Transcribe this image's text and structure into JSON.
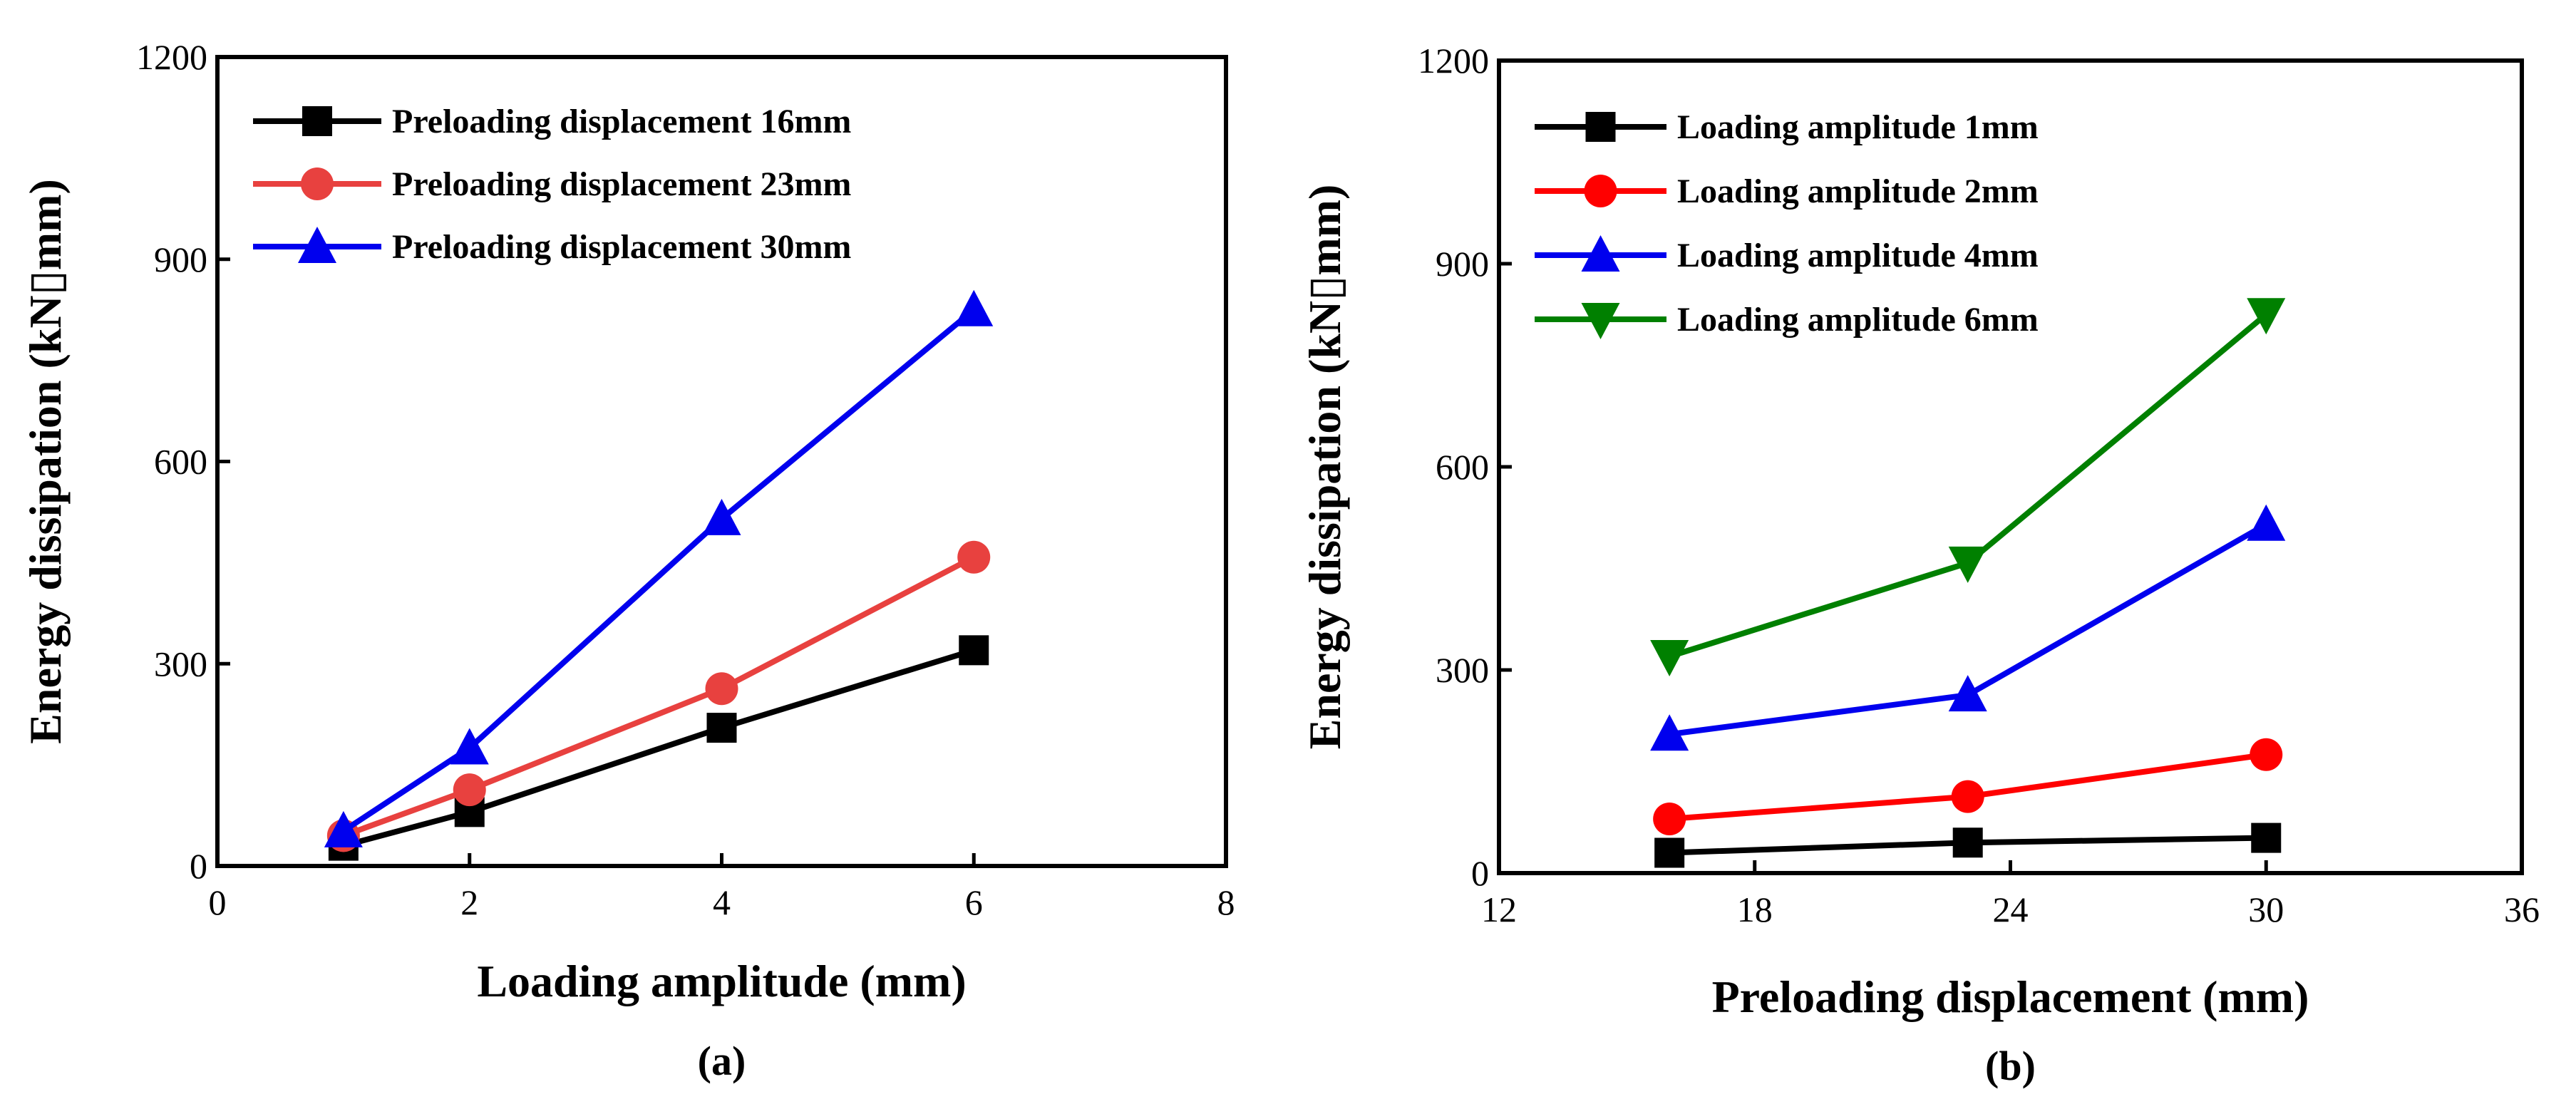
{
  "chart_data": [
    {
      "type": "line",
      "panel_label": "(a)",
      "xlabel": "Loading amplitude (mm)",
      "ylabel": "Energy dissipation (kN▯mm)",
      "xlim": [
        0,
        8
      ],
      "ylim": [
        0,
        1200
      ],
      "xticks": [
        0,
        2,
        4,
        6,
        8
      ],
      "yticks": [
        0,
        300,
        600,
        900,
        1200
      ],
      "legend_position": "top-left",
      "grid": false,
      "series": [
        {
          "name": "Preloading displacement 16mm",
          "color": "#000000",
          "marker": "square",
          "x": [
            1,
            2,
            4,
            6
          ],
          "y": [
            30,
            80,
            205,
            320
          ]
        },
        {
          "name": "Preloading displacement 23mm",
          "color": "#e8413f",
          "marker": "circle",
          "x": [
            1,
            2,
            4,
            6
          ],
          "y": [
            45,
            113,
            263,
            458
          ]
        },
        {
          "name": "Preloading displacement 30mm",
          "color": "#0000ee",
          "marker": "triangle-up",
          "x": [
            1,
            2,
            4,
            6
          ],
          "y": [
            52,
            175,
            515,
            825
          ]
        }
      ]
    },
    {
      "type": "line",
      "panel_label": "(b)",
      "xlabel": "Preloading displacement (mm)",
      "ylabel": "Energy dissipation (kN▯mm)",
      "xlim": [
        12,
        36
      ],
      "ylim": [
        0,
        1200
      ],
      "xticks": [
        12,
        18,
        24,
        30,
        36
      ],
      "yticks": [
        0,
        300,
        600,
        900,
        1200
      ],
      "legend_position": "top-left",
      "grid": false,
      "series": [
        {
          "name": "Loading amplitude 1mm",
          "color": "#000000",
          "marker": "square",
          "x": [
            16,
            23,
            30
          ],
          "y": [
            30,
            45,
            52
          ]
        },
        {
          "name": "Loading amplitude 2mm",
          "color": "#ff0000",
          "marker": "circle",
          "x": [
            16,
            23,
            30
          ],
          "y": [
            80,
            113,
            175
          ]
        },
        {
          "name": "Loading amplitude 4mm",
          "color": "#0000ee",
          "marker": "triangle-up",
          "x": [
            16,
            23,
            30
          ],
          "y": [
            205,
            263,
            515
          ]
        },
        {
          "name": "Loading amplitude 6mm",
          "color": "#008000",
          "marker": "triangle-down",
          "x": [
            16,
            23,
            30
          ],
          "y": [
            320,
            458,
            825
          ]
        }
      ]
    }
  ]
}
